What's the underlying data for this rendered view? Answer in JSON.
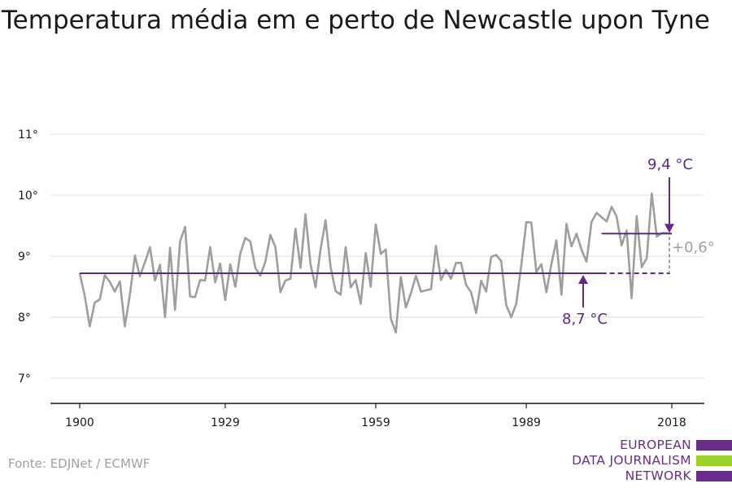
{
  "chart_data": {
    "type": "line",
    "title": "Temperatura média em e perto de Newcastle upon Tyne",
    "xlabel": "",
    "ylabel": "",
    "xlim": [
      1900,
      2018
    ],
    "ylim": [
      6.6,
      11.3
    ],
    "x_ticks": [
      1900,
      1929,
      1959,
      1989,
      2018
    ],
    "x_tick_labels": [
      "1900",
      "1929",
      "1959",
      "1989",
      "2018"
    ],
    "y_ticks": [
      7,
      8,
      9,
      10,
      11
    ],
    "y_tick_labels": [
      "7°",
      "8°",
      "9°",
      "10°",
      "11°"
    ],
    "grid": "horizontal",
    "series": [
      {
        "name": "",
        "color": "#9e9e9e",
        "x": [
          1900,
          1901,
          1902,
          1903,
          1904,
          1905,
          1906,
          1907,
          1908,
          1909,
          1910,
          1911,
          1912,
          1913,
          1914,
          1915,
          1916,
          1917,
          1918,
          1919,
          1920,
          1921,
          1922,
          1923,
          1924,
          1925,
          1926,
          1927,
          1928,
          1929,
          1930,
          1931,
          1932,
          1933,
          1934,
          1935,
          1936,
          1937,
          1938,
          1939,
          1940,
          1941,
          1942,
          1943,
          1944,
          1945,
          1946,
          1947,
          1948,
          1949,
          1950,
          1951,
          1952,
          1953,
          1954,
          1955,
          1956,
          1957,
          1958,
          1959,
          1960,
          1961,
          1962,
          1963,
          1964,
          1965,
          1966,
          1967,
          1968,
          1969,
          1970,
          1971,
          1972,
          1973,
          1974,
          1975,
          1976,
          1977,
          1978,
          1979,
          1980,
          1981,
          1982,
          1983,
          1984,
          1985,
          1986,
          1987,
          1988,
          1989,
          1990,
          1991,
          1992,
          1993,
          1994,
          1995,
          1996,
          1997,
          1998,
          1999,
          2000,
          2001,
          2002,
          2003,
          2004,
          2005,
          2006,
          2007,
          2008,
          2009,
          2010,
          2011,
          2012,
          2013,
          2014,
          2015,
          2016,
          2017,
          2018
        ],
        "values": [
          8.72,
          8.35,
          7.85,
          8.24,
          8.29,
          8.69,
          8.58,
          8.42,
          8.59,
          7.85,
          8.37,
          9.01,
          8.67,
          8.9,
          9.15,
          8.6,
          8.86,
          8.0,
          9.14,
          8.12,
          9.24,
          9.48,
          8.34,
          8.33,
          8.61,
          8.6,
          9.15,
          8.57,
          8.88,
          8.28,
          8.87,
          8.5,
          9.04,
          9.3,
          9.24,
          8.81,
          8.68,
          8.91,
          9.35,
          9.15,
          8.41,
          8.6,
          8.63,
          9.45,
          8.81,
          9.69,
          8.87,
          8.49,
          9.11,
          9.59,
          8.82,
          8.43,
          8.37,
          9.15,
          8.49,
          8.61,
          8.22,
          9.05,
          8.5,
          9.52,
          9.04,
          9.11,
          7.98,
          7.75,
          8.66,
          8.16,
          8.39,
          8.68,
          8.42,
          8.44,
          8.46,
          9.17,
          8.61,
          8.78,
          8.63,
          8.89,
          8.89,
          8.53,
          8.41,
          8.07,
          8.6,
          8.42,
          8.99,
          9.02,
          8.92,
          8.2,
          8.0,
          8.22,
          8.85,
          9.56,
          9.55,
          8.74,
          8.87,
          8.41,
          8.87,
          9.26,
          8.37,
          9.53,
          9.16,
          9.37,
          9.11,
          8.91,
          9.56,
          9.71,
          9.64,
          9.57,
          9.81,
          9.65,
          9.18,
          9.42,
          8.31,
          9.66,
          8.82,
          8.97,
          10.03,
          9.32,
          9.38,
          9.38,
          9.37
        ]
      }
    ],
    "reference_lines": [
      {
        "x_start": 1900,
        "x_end": 2018,
        "value": 8.72,
        "color": "#5e2a84",
        "dashed_from": 2004
      },
      {
        "x_start": 2004,
        "x_end": 2018,
        "value": 9.37,
        "color": "#5e2a84"
      }
    ],
    "annotations": [
      {
        "text": "9,4 °C",
        "color": "#5e2a84"
      },
      {
        "text": "8,7 °C",
        "color": "#5e2a84"
      },
      {
        "text": "+0,6°",
        "color": "#a0a0a0"
      }
    ]
  },
  "footer": {
    "source": "Fonte: EDJNet / ECMWF",
    "logo_lines": [
      "EUROPEAN",
      "DATA JOURNALISM",
      "NETWORK"
    ],
    "logo_colors": [
      "#6a2c8c",
      "#9bd22b",
      "#6a2c8c"
    ]
  }
}
